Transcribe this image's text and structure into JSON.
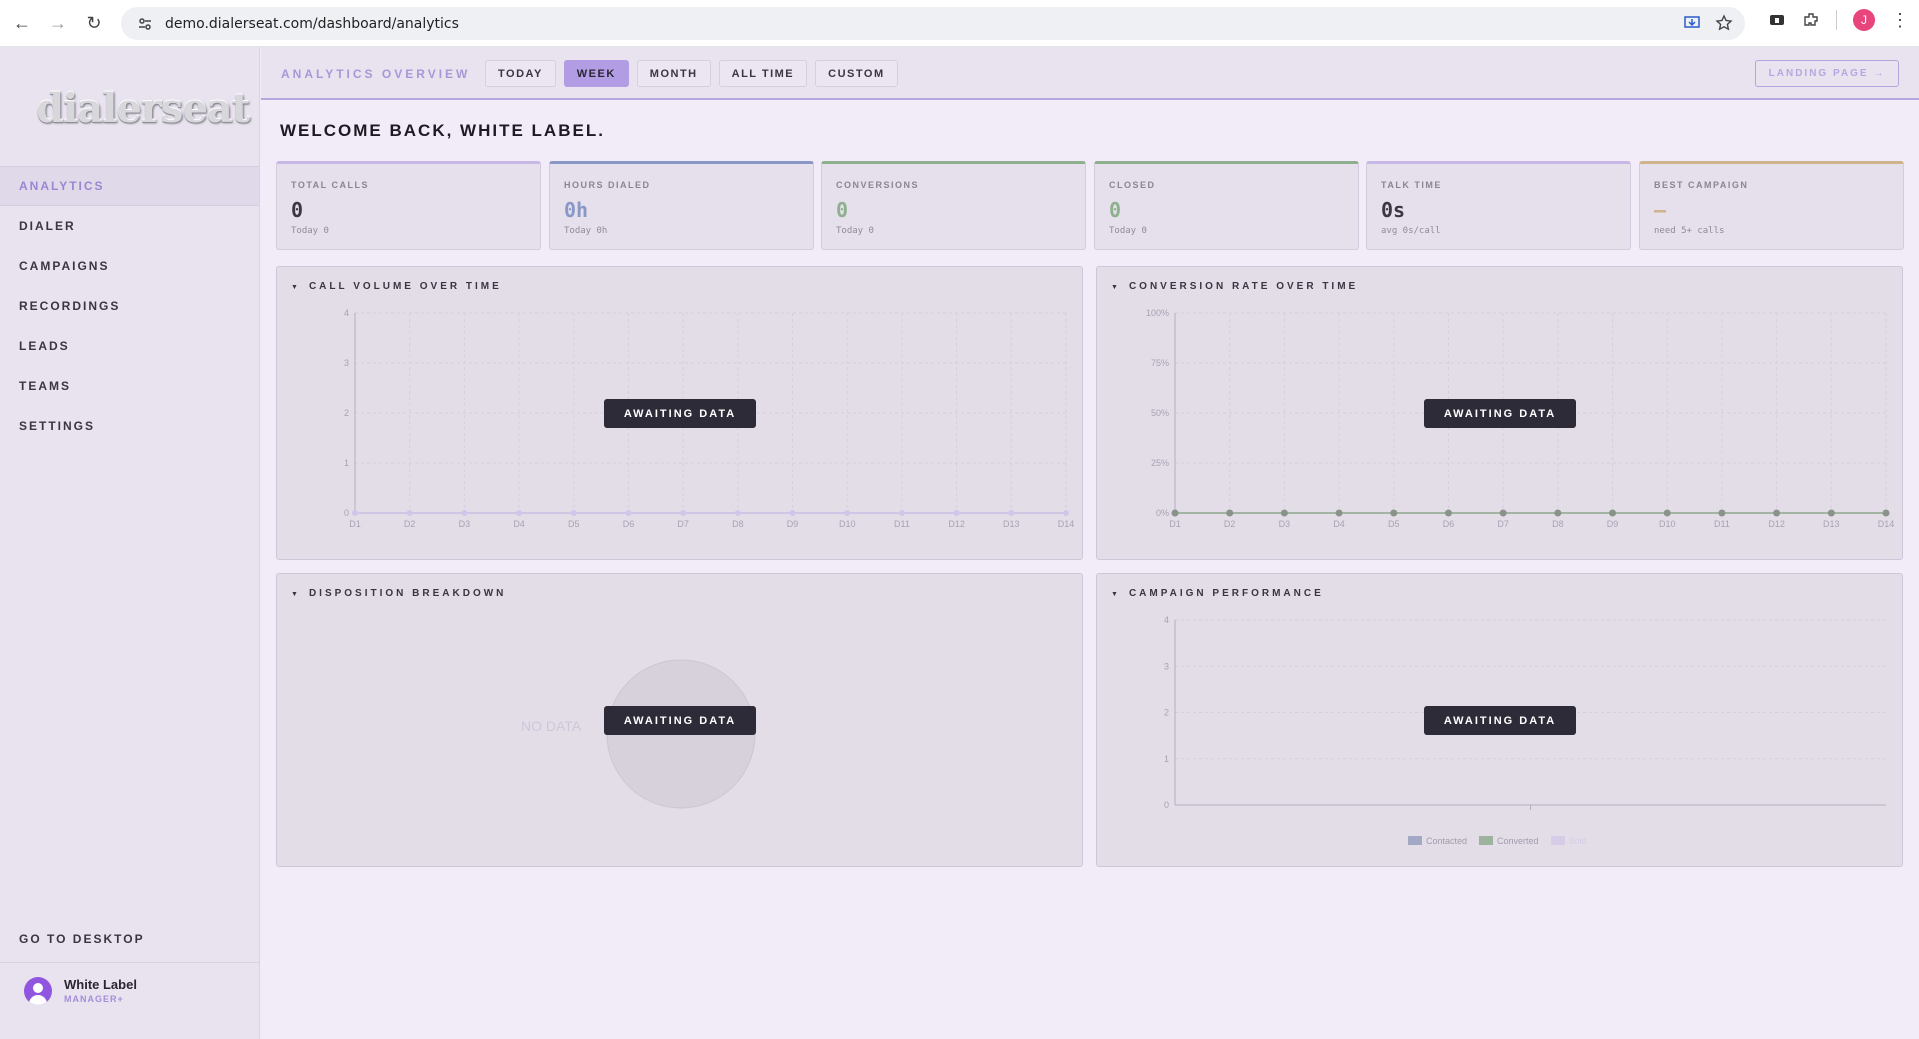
{
  "browser": {
    "url": "demo.dialerseat.com/dashboard/analytics",
    "profile_initial": "J"
  },
  "sidebar": {
    "logo": "dialerseat",
    "items": [
      {
        "label": "ANALYTICS",
        "active": true
      },
      {
        "label": "DIALER"
      },
      {
        "label": "CAMPAIGNS"
      },
      {
        "label": "RECORDINGS"
      },
      {
        "label": "LEADS"
      },
      {
        "label": "TEAMS"
      },
      {
        "label": "SETTINGS"
      }
    ],
    "goto_desktop": "GO TO DESKTOP",
    "user": {
      "name": "White Label",
      "role": "MANAGER+"
    }
  },
  "topbar": {
    "title": "ANALYTICS OVERVIEW",
    "ranges": [
      "TODAY",
      "WEEK",
      "MONTH",
      "ALL TIME",
      "CUSTOM"
    ],
    "active_range": "WEEK",
    "landing_button": "LANDING PAGE →"
  },
  "welcome": "WELCOME BACK, WHITE LABEL.",
  "stats": [
    {
      "label": "TOTAL CALLS",
      "value": "0",
      "sub": "Today 0",
      "accent": "#c7b8e6",
      "value_color": "#3c3645"
    },
    {
      "label": "HOURS DIALED",
      "value": "0h",
      "sub": "Today 0h",
      "accent": "#8a98c8",
      "value_color": "#8a98c8"
    },
    {
      "label": "CONVERSIONS",
      "value": "0",
      "sub": "Today 0",
      "accent": "#8fb08f",
      "value_color": "#8fb08f"
    },
    {
      "label": "CLOSED",
      "value": "0",
      "sub": "Today 0",
      "accent": "#8fb08f",
      "value_color": "#8fb08f"
    },
    {
      "label": "TALK TIME",
      "value": "0s",
      "sub": "avg 0s/call",
      "accent": "#c7b8e6",
      "value_color": "#3c3645"
    },
    {
      "label": "BEST CAMPAIGN",
      "value": "—",
      "sub": "need 5+ calls",
      "accent": "#cdb48a",
      "value_color": "#cdb48a"
    }
  ],
  "panels": {
    "call_volume": {
      "title": "CALL VOLUME OVER TIME",
      "status": "AWAITING DATA"
    },
    "conversion_rate": {
      "title": "CONVERSION RATE OVER TIME",
      "status": "AWAITING DATA"
    },
    "disposition": {
      "title": "DISPOSITION BREAKDOWN",
      "status": "AWAITING DATA",
      "empty_label": "NO DATA"
    },
    "campaign_performance": {
      "title": "CAMPAIGN PERFORMANCE",
      "status": "AWAITING DATA"
    }
  },
  "chart_data": [
    {
      "type": "line",
      "categories": [
        "D1",
        "D2",
        "D3",
        "D4",
        "D5",
        "D6",
        "D7",
        "D8",
        "D9",
        "D10",
        "D11",
        "D12",
        "D13",
        "D14"
      ],
      "values": [
        0,
        0,
        0,
        0,
        0,
        0,
        0,
        0,
        0,
        0,
        0,
        0,
        0,
        0
      ],
      "yticks": [
        "0",
        "1",
        "2",
        "3",
        "4"
      ],
      "ylim": [
        0,
        4
      ],
      "grid": true
    },
    {
      "type": "line",
      "categories": [
        "D1",
        "D2",
        "D3",
        "D4",
        "D5",
        "D6",
        "D7",
        "D8",
        "D9",
        "D10",
        "D11",
        "D12",
        "D13",
        "D14"
      ],
      "values": [
        0,
        0,
        0,
        0,
        0,
        0,
        0,
        0,
        0,
        0,
        0,
        0,
        0,
        0
      ],
      "yticks": [
        "0%",
        "25%",
        "50%",
        "75%",
        "100%"
      ],
      "ylim": [
        0,
        100
      ],
      "grid": true
    },
    {
      "type": "pie",
      "values": [],
      "labels": []
    },
    {
      "type": "bar",
      "categories": [],
      "series": [
        {
          "name": "Contacted",
          "values": [],
          "color": "#a3a8c4"
        },
        {
          "name": "Converted",
          "values": [],
          "color": "#9db39d"
        },
        {
          "name": "Sold",
          "values": [],
          "color": "#d7cce8"
        }
      ],
      "yticks": [
        "0",
        "1",
        "2",
        "3",
        "4"
      ],
      "ylim": [
        0,
        4
      ],
      "grid": true
    }
  ]
}
